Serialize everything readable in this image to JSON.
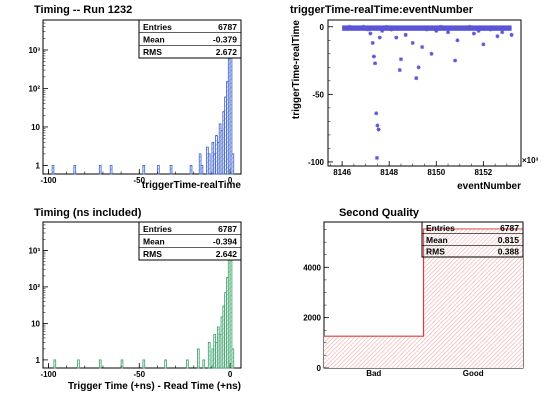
{
  "colors": {
    "blue_line": "#3a5fc8",
    "blue_fill": "#9fb6ea",
    "green_line": "#39a06a",
    "green_fill": "#a8d8b6",
    "scatter": "#5b55d6",
    "red_line": "#d84040",
    "red_fill": "#f0a8a8",
    "frame": "#000000"
  },
  "chart_data": [
    {
      "type": "histogram",
      "title": "Timing -- Run 1232",
      "xlabel": "triggerTime-realTime",
      "ylabel": "",
      "yscale": "log",
      "xlim": [
        -103,
        6
      ],
      "ylim": [
        0.6,
        6000
      ],
      "x_ticks": [
        -100,
        -50,
        0
      ],
      "y_ticks": [
        {
          "value": 1,
          "label": "1"
        },
        {
          "value": 10,
          "label": "10"
        },
        {
          "value": 100,
          "label": "10²"
        },
        {
          "value": 1000,
          "label": "10³"
        }
      ],
      "stats": [
        {
          "label": "Entries",
          "value": "6787"
        },
        {
          "label": "Mean",
          "value": "-0.379"
        },
        {
          "label": "RMS",
          "value": "2.672"
        }
      ],
      "bins": [
        {
          "x": -98,
          "y": 1
        },
        {
          "x": -86,
          "y": 1
        },
        {
          "x": -72,
          "y": 1
        },
        {
          "x": -66,
          "y": 1
        },
        {
          "x": -48,
          "y": 1
        },
        {
          "x": -40,
          "y": 1
        },
        {
          "x": -33,
          "y": 1
        },
        {
          "x": -22,
          "y": 1
        },
        {
          "x": -17,
          "y": 2
        },
        {
          "x": -16,
          "y": 1
        },
        {
          "x": -13,
          "y": 3
        },
        {
          "x": -12,
          "y": 2
        },
        {
          "x": -10,
          "y": 4
        },
        {
          "x": -9,
          "y": 2
        },
        {
          "x": -8,
          "y": 6
        },
        {
          "x": -7,
          "y": 4
        },
        {
          "x": -6,
          "y": 12
        },
        {
          "x": -5,
          "y": 8
        },
        {
          "x": -4,
          "y": 25
        },
        {
          "x": -3,
          "y": 60
        },
        {
          "x": -2,
          "y": 150
        },
        {
          "x": -1,
          "y": 600
        },
        {
          "x": 0,
          "y": 3500
        },
        {
          "x": 1,
          "y": 2
        }
      ]
    },
    {
      "type": "scatter",
      "title": "triggerTime-realTime:eventNumber",
      "xlabel": "eventNumber",
      "ylabel": "triggerTime-realTime",
      "xlim": [
        8145.4,
        8153.6
      ],
      "ylim": [
        -103,
        5
      ],
      "x_ticks": [
        8146,
        8148,
        8150,
        8152
      ],
      "y_ticks": [
        -100,
        -50,
        0
      ],
      "x_exponent": "×10³",
      "points": [
        {
          "x": 8146.3,
          "y": 0
        },
        {
          "x": 8146.6,
          "y": -1
        },
        {
          "x": 8146.9,
          "y": 0
        },
        {
          "x": 8147.1,
          "y": -2
        },
        {
          "x": 8147.2,
          "y": -5
        },
        {
          "x": 8147.3,
          "y": -12
        },
        {
          "x": 8147.35,
          "y": -22
        },
        {
          "x": 8147.4,
          "y": -27
        },
        {
          "x": 8147.45,
          "y": -64
        },
        {
          "x": 8147.5,
          "y": -73
        },
        {
          "x": 8147.55,
          "y": -76
        },
        {
          "x": 8147.48,
          "y": -97
        },
        {
          "x": 8147.6,
          "y": -8
        },
        {
          "x": 8147.7,
          "y": -3
        },
        {
          "x": 8147.9,
          "y": 0
        },
        {
          "x": 8148.1,
          "y": -2
        },
        {
          "x": 8148.3,
          "y": -8
        },
        {
          "x": 8148.45,
          "y": -32
        },
        {
          "x": 8148.5,
          "y": -24
        },
        {
          "x": 8148.7,
          "y": -6
        },
        {
          "x": 8148.9,
          "y": -1
        },
        {
          "x": 8149.0,
          "y": -12
        },
        {
          "x": 8149.15,
          "y": -38
        },
        {
          "x": 8149.25,
          "y": -30
        },
        {
          "x": 8149.4,
          "y": -15
        },
        {
          "x": 8149.6,
          "y": -2
        },
        {
          "x": 8149.8,
          "y": -20
        },
        {
          "x": 8150.0,
          "y": -3
        },
        {
          "x": 8150.2,
          "y": 0
        },
        {
          "x": 8150.5,
          "y": -4
        },
        {
          "x": 8150.8,
          "y": -25
        },
        {
          "x": 8150.9,
          "y": -10
        },
        {
          "x": 8151.1,
          "y": -1
        },
        {
          "x": 8151.4,
          "y": 0
        },
        {
          "x": 8151.6,
          "y": -5
        },
        {
          "x": 8151.8,
          "y": -3
        },
        {
          "x": 8152.0,
          "y": -13
        },
        {
          "x": 8152.3,
          "y": -2
        },
        {
          "x": 8152.6,
          "y": -7
        },
        {
          "x": 8152.8,
          "y": -4
        },
        {
          "x": 8153.0,
          "y": -1
        },
        {
          "x": 8153.2,
          "y": -6
        }
      ],
      "band": {
        "x_from": 8146.0,
        "x_to": 8153.2,
        "y_from": -3,
        "y_to": 1
      }
    },
    {
      "type": "histogram",
      "title": "Timing (ns included)",
      "xlabel": "Trigger Time (+ns) - Read Time (+ns)",
      "ylabel": "",
      "yscale": "log",
      "xlim": [
        -103,
        6
      ],
      "ylim": [
        0.6,
        6000
      ],
      "x_ticks": [
        -100,
        -50,
        0
      ],
      "y_ticks": [
        {
          "value": 1,
          "label": "1"
        },
        {
          "value": 10,
          "label": "10"
        },
        {
          "value": 100,
          "label": "10²"
        },
        {
          "value": 1000,
          "label": "10³"
        }
      ],
      "stats": [
        {
          "label": "Entries",
          "value": "6787"
        },
        {
          "label": "Mean",
          "value": "-0.394"
        },
        {
          "label": "RMS",
          "value": "2.642"
        }
      ],
      "bins": [
        {
          "x": -97,
          "y": 1
        },
        {
          "x": -84,
          "y": 1
        },
        {
          "x": -72,
          "y": 1
        },
        {
          "x": -60,
          "y": 1
        },
        {
          "x": -48,
          "y": 1
        },
        {
          "x": -36,
          "y": 1
        },
        {
          "x": -24,
          "y": 1
        },
        {
          "x": -18,
          "y": 2
        },
        {
          "x": -15,
          "y": 1
        },
        {
          "x": -12,
          "y": 3
        },
        {
          "x": -10,
          "y": 2
        },
        {
          "x": -9,
          "y": 5
        },
        {
          "x": -8,
          "y": 3
        },
        {
          "x": -7,
          "y": 8
        },
        {
          "x": -6,
          "y": 5
        },
        {
          "x": -5,
          "y": 15
        },
        {
          "x": -4,
          "y": 30
        },
        {
          "x": -3,
          "y": 70
        },
        {
          "x": -2,
          "y": 180
        },
        {
          "x": -1,
          "y": 650
        },
        {
          "x": 0,
          "y": 3400
        },
        {
          "x": 1,
          "y": 2
        }
      ]
    },
    {
      "type": "histogram",
      "title": "Second Quality",
      "xlabel": "",
      "ylabel": "",
      "yscale": "linear",
      "ylim": [
        0,
        5800
      ],
      "categories": [
        "Bad",
        "Good"
      ],
      "values": [
        1263,
        5524
      ],
      "y_ticks": [
        {
          "value": 0,
          "label": "0"
        },
        {
          "value": 2000,
          "label": "2000"
        },
        {
          "value": 4000,
          "label": "4000"
        }
      ],
      "stats": [
        {
          "label": "Entries",
          "value": "6787"
        },
        {
          "label": "Mean",
          "value": "0.815"
        },
        {
          "label": "RMS",
          "value": "0.388"
        }
      ]
    }
  ]
}
